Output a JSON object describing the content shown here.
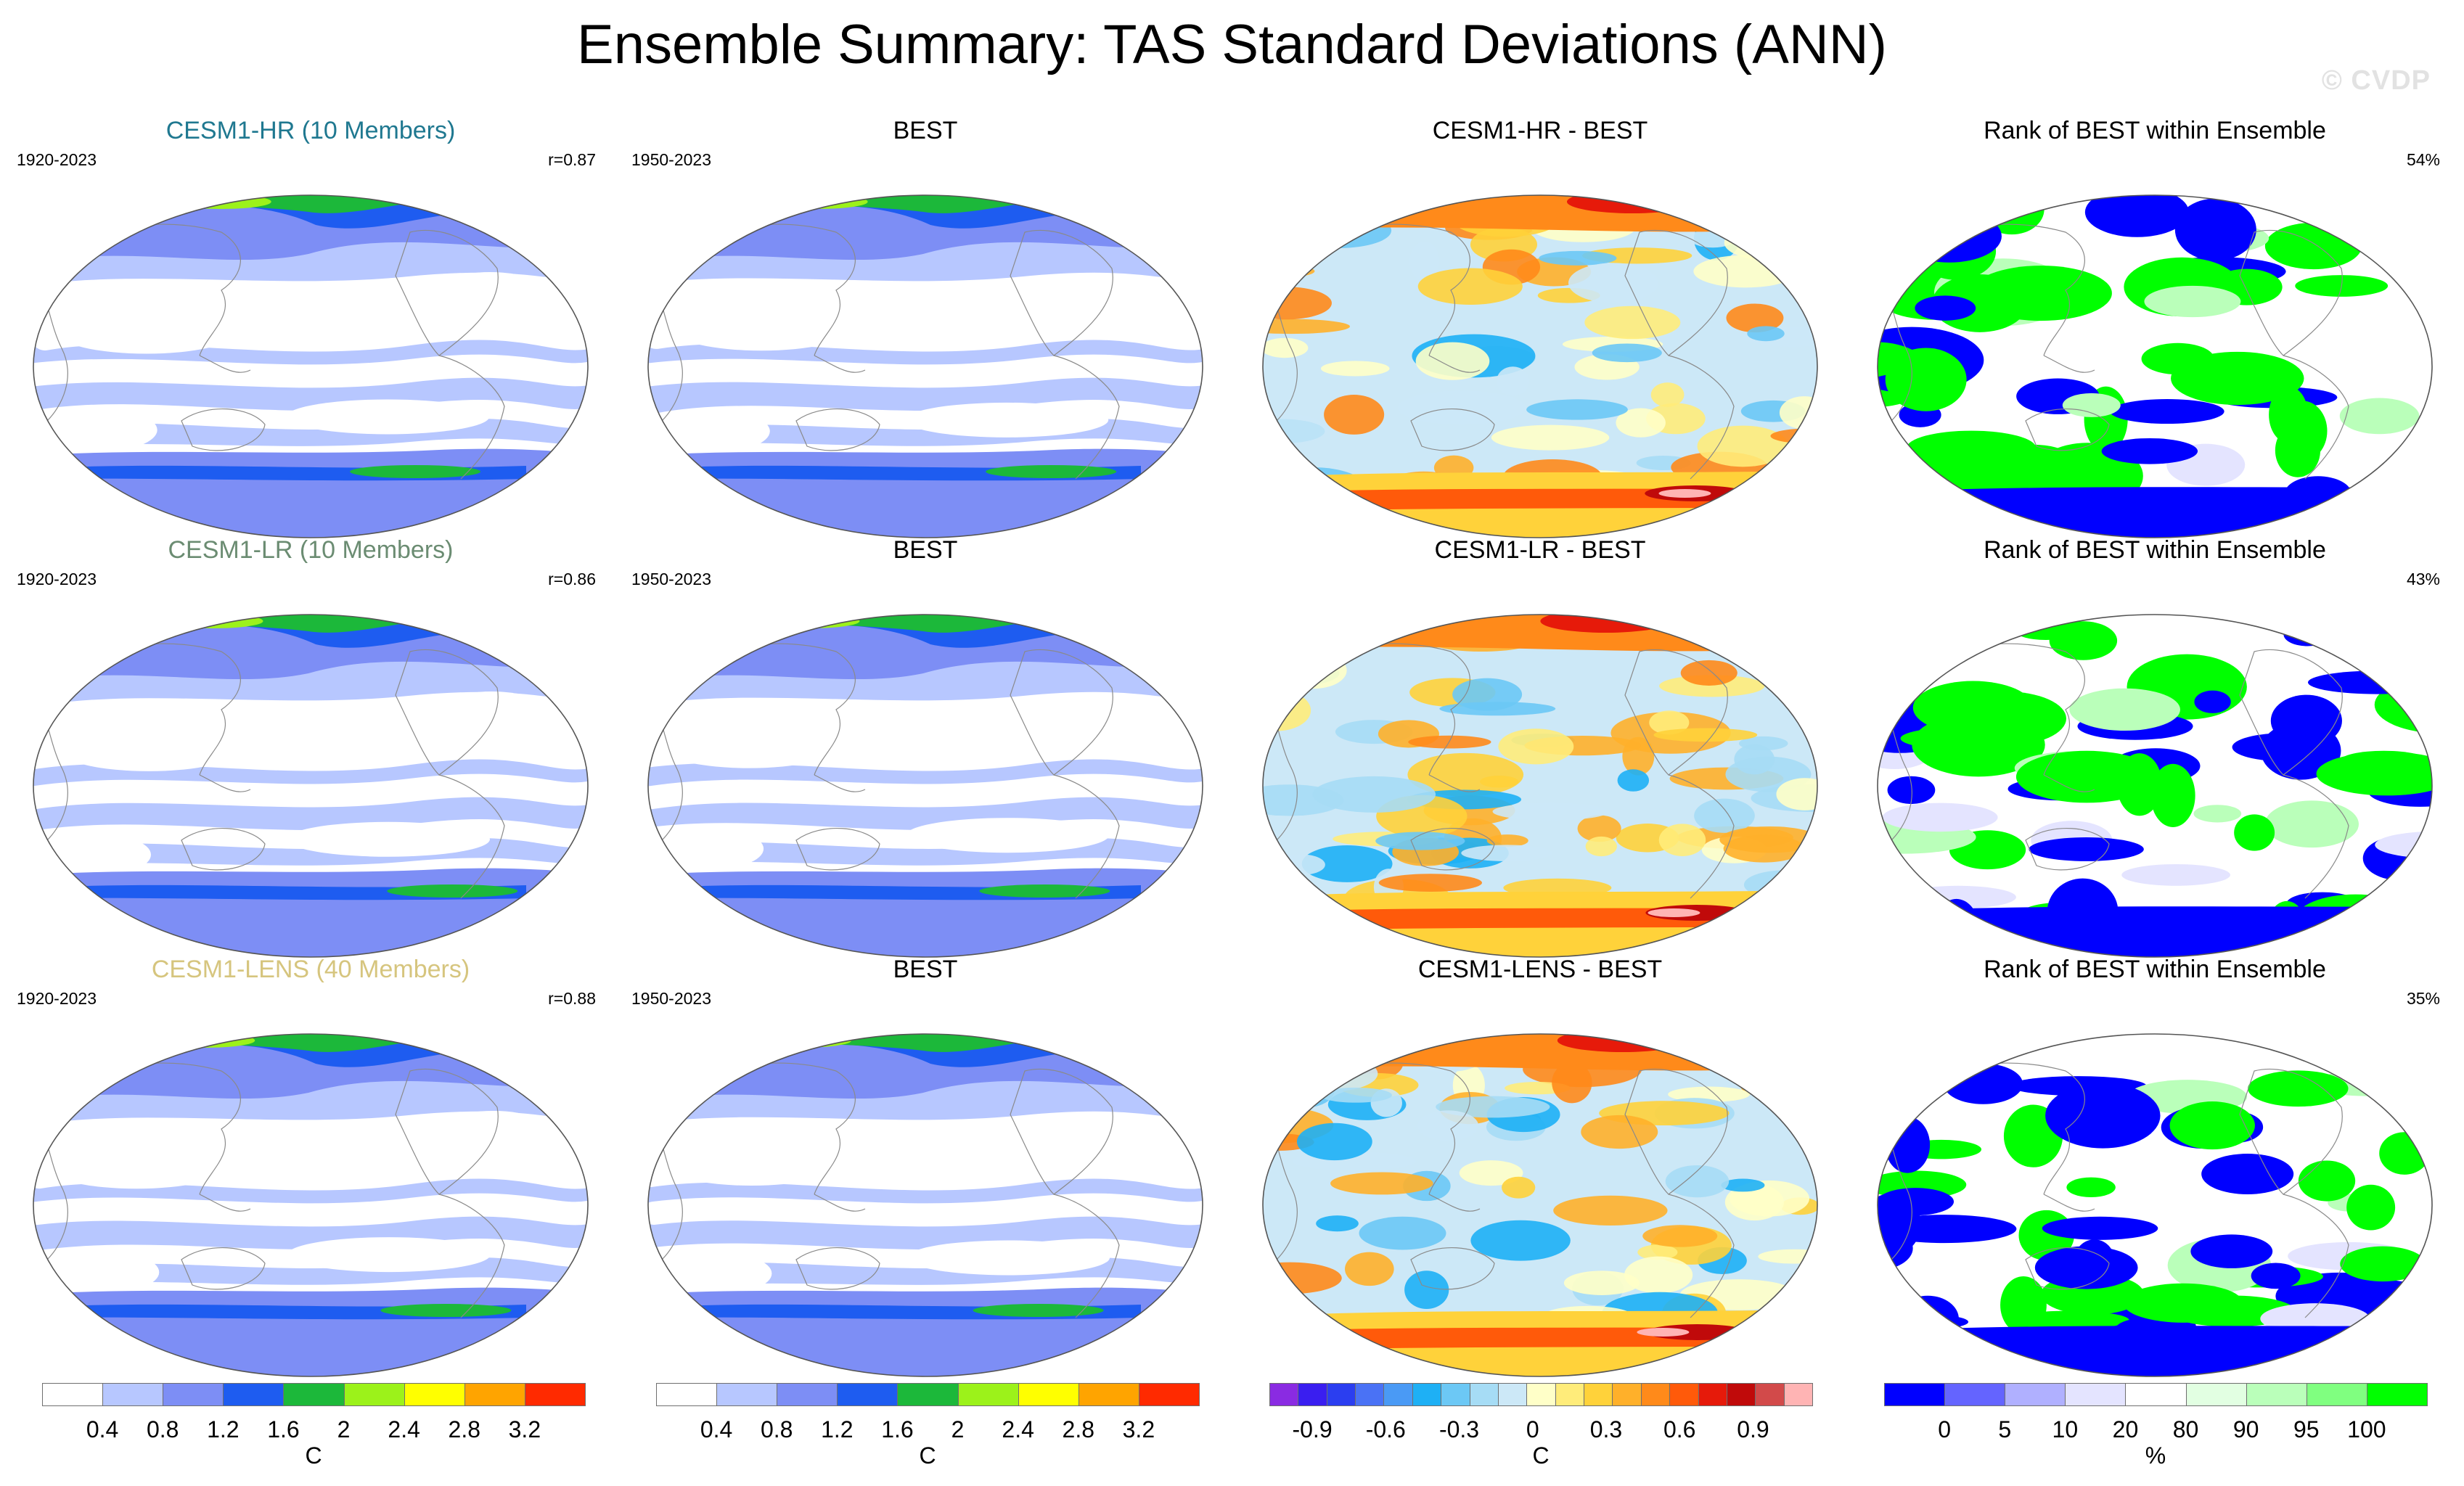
{
  "title": "Ensemble Summary: TAS Standard Deviations (ANN)",
  "watermark": "© CVDP",
  "rows": [
    {
      "model": {
        "title": "CESM1-HR (10 Members)",
        "title_color": "#1f7890",
        "period": "1920-2023",
        "corr": "r=0.87"
      },
      "obs": {
        "title": "BEST",
        "period": "1950-2023"
      },
      "diff": {
        "title": "CESM1-HR - BEST"
      },
      "rank": {
        "title": "Rank of BEST within Ensemble",
        "pct": "54%"
      }
    },
    {
      "model": {
        "title": "CESM1-LR (10 Members)",
        "title_color": "#6b8c72",
        "period": "1920-2023",
        "corr": "r=0.86"
      },
      "obs": {
        "title": "BEST",
        "period": "1950-2023"
      },
      "diff": {
        "title": "CESM1-LR - BEST"
      },
      "rank": {
        "title": "Rank of BEST within Ensemble",
        "pct": "43%"
      }
    },
    {
      "model": {
        "title": "CESM1-LENS (40 Members)",
        "title_color": "#d6c57e",
        "period": "1920-2023",
        "corr": "r=0.88"
      },
      "obs": {
        "title": "BEST",
        "period": "1950-2023"
      },
      "diff": {
        "title": "CESM1-LENS - BEST"
      },
      "rank": {
        "title": "Rank of BEST within Ensemble",
        "pct": "35%"
      }
    }
  ],
  "colorbars": {
    "std": {
      "unit": "C",
      "colors": [
        "#ffffff",
        "#b7c7ff",
        "#7d8ef5",
        "#1e5cf0",
        "#1cb83a",
        "#9cf21a",
        "#ffff00",
        "#ffa400",
        "#ff2a00"
      ],
      "labels": [
        "0.4",
        "0.8",
        "1.2",
        "1.6",
        "2",
        "2.4",
        "2.8",
        "3.2"
      ]
    },
    "diff": {
      "unit": "C",
      "colors": [
        "#8a2be2",
        "#3a1ef0",
        "#2b3ef0",
        "#4a72f5",
        "#4a9af5",
        "#1eb0f5",
        "#6cc8f5",
        "#a6dcf5",
        "#cce8f7",
        "#ffffc8",
        "#ffec7a",
        "#ffd23a",
        "#ffb02a",
        "#ff8a1a",
        "#ff5a0a",
        "#e61a0a",
        "#c00a0a",
        "#d24a4a",
        "#ffb4b4"
      ],
      "labels": [
        "-0.9",
        "-0.6",
        "-0.3",
        "0",
        "0.3",
        "0.6",
        "0.9"
      ]
    },
    "rank": {
      "unit": "%",
      "colors": [
        "#0000ff",
        "#6464ff",
        "#b0b0ff",
        "#e4e4ff",
        "#ffffff",
        "#e2ffe2",
        "#baffba",
        "#80ff80",
        "#00ff00"
      ],
      "labels": [
        "0",
        "5",
        "10",
        "20",
        "80",
        "90",
        "95",
        "100"
      ]
    }
  }
}
